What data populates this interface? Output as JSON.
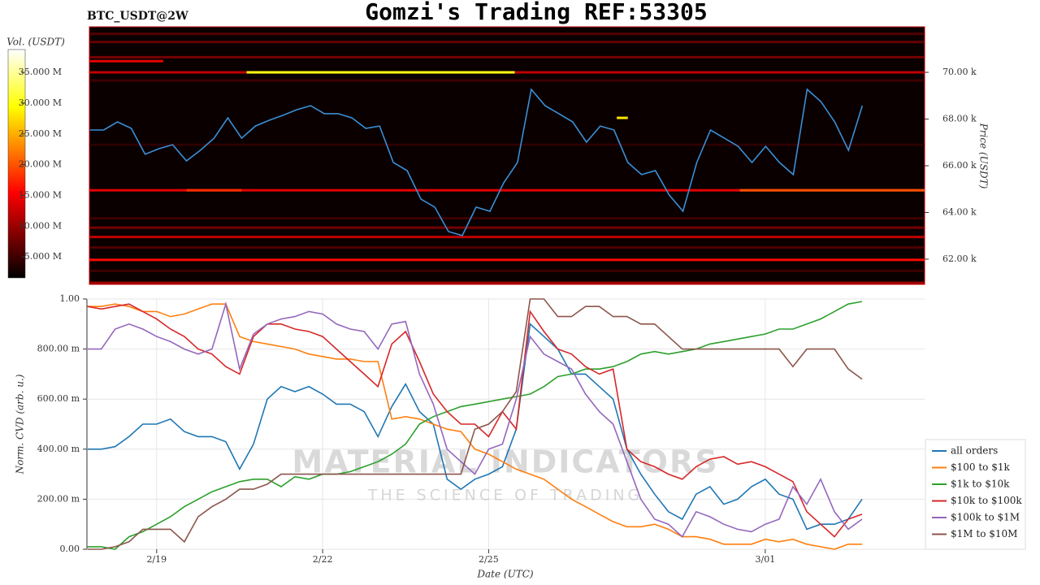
{
  "chart_data": [
    {
      "type": "heatmap",
      "symbol": "BTC_USDT@2W",
      "title": "Gomzi's Trading REF:53305",
      "colorbar_label": "Vol. (USDT)",
      "colorbar_lim": [
        1600000,
        38700000
      ],
      "colorbar_ticks": [
        {
          "value": 5000000,
          "label": "5.000 M"
        },
        {
          "value": 10000000,
          "label": "10.000 M"
        },
        {
          "value": 15000000,
          "label": "15.000 M"
        },
        {
          "value": 20000000,
          "label": "20.000 M"
        },
        {
          "value": 25000000,
          "label": "25.000 M"
        },
        {
          "value": 30000000,
          "label": "30.000 M"
        },
        {
          "value": 35000000,
          "label": "35.000 M"
        }
      ],
      "y_label": "Price (USDT)",
      "ylim": [
        60920,
        71950
      ],
      "yticks": [
        {
          "value": 62000,
          "label": "62.00 k"
        },
        {
          "value": 64000,
          "label": "64.00 k"
        },
        {
          "value": 66000,
          "label": "66.00 k"
        },
        {
          "value": 68000,
          "label": "68.00 k"
        },
        {
          "value": 70000,
          "label": "70.00 k"
        }
      ],
      "xlim": [
        17.74,
        32.88
      ],
      "x": [
        17.75,
        18,
        18.25,
        18.5,
        18.75,
        19,
        19.25,
        19.5,
        19.75,
        20,
        20.25,
        20.5,
        20.75,
        21,
        21.25,
        21.5,
        21.75,
        22,
        22.25,
        22.5,
        22.75,
        23,
        23.25,
        23.5,
        23.75,
        24,
        24.25,
        24.5,
        24.75,
        25,
        25.25,
        25.5,
        25.75,
        26,
        26.25,
        26.5,
        26.75,
        27,
        27.25,
        27.5,
        27.75,
        28,
        28.25,
        28.5,
        28.75,
        29,
        29.25,
        29.5,
        29.75,
        30,
        30.25,
        30.5,
        30.75,
        31,
        31.25,
        31.5,
        31.75
      ],
      "color": "#3a8fd6",
      "values": [
        67530,
        67530,
        67880,
        67600,
        66490,
        66730,
        66900,
        66210,
        66660,
        67180,
        68050,
        67180,
        67700,
        67950,
        68160,
        68400,
        68570,
        68230,
        68230,
        68050,
        67600,
        67700,
        66140,
        65790,
        64570,
        64230,
        63180,
        63010,
        64230,
        64050,
        65270,
        66140,
        69270,
        68570,
        68230,
        67880,
        67010,
        67700,
        67530,
        66140,
        65620,
        65790,
        64750,
        64050,
        66140,
        67530,
        67180,
        66830,
        66140,
        66830,
        66140,
        65620,
        69270,
        68750,
        67880,
        66660,
        68570
      ],
      "walls": {
        "price": [
          70000,
          70000,
          64950,
          64950,
          64950,
          61970,
          62950,
          70650,
          71300,
          60990,
          63350,
          68050,
          69650,
          71650,
          63750,
          62500,
          61500,
          66900,
          70480
        ],
        "start": [
          17.74,
          20.59,
          17.74,
          29.53,
          19.5,
          17.74,
          17.74,
          17.74,
          17.74,
          17.74,
          17.74,
          27.3,
          17.74,
          17.74,
          17.74,
          17.74,
          17.74,
          17.74,
          17.74
        ],
        "end": [
          32.88,
          25.45,
          32.88,
          32.88,
          20.5,
          32.88,
          32.88,
          32.88,
          32.88,
          32.88,
          32.88,
          27.5,
          32.88,
          32.88,
          32.88,
          32.88,
          32.88,
          32.88,
          19.08
        ],
        "volume": [
          12000000,
          30000000,
          14000000,
          20000000,
          18000000,
          16000000,
          12000000,
          8000000,
          7000000,
          10000000,
          8000000,
          28000000,
          5000000,
          6000000,
          5000000,
          6000000,
          5000000,
          4000000,
          14000000
        ]
      }
    },
    {
      "type": "line",
      "y_label": "Norm. CVD (arb. u.)",
      "x_label": "Date (UTC)",
      "watermark": [
        "MATERIAL INDICATORS",
        "THE SCIENCE OF TRADING"
      ],
      "xlim": [
        17.74,
        32.88
      ],
      "xticks": [
        {
          "value": 19,
          "label": "2/19"
        },
        {
          "value": 22,
          "label": "2/22"
        },
        {
          "value": 25,
          "label": "2/25"
        },
        {
          "value": 30,
          "label": "3/01"
        }
      ],
      "ylim": [
        0,
        1
      ],
      "yticks": [
        {
          "value": 0,
          "label": "0.00"
        },
        {
          "value": 0.2,
          "label": "200.00 m"
        },
        {
          "value": 0.4,
          "label": "400.00 m"
        },
        {
          "value": 0.6,
          "label": "600.00 m"
        },
        {
          "value": 0.8,
          "label": "800.00 m"
        },
        {
          "value": 1,
          "label": "1.00"
        }
      ],
      "grid": true,
      "legend": "lower right",
      "x": [
        17.75,
        18,
        18.25,
        18.5,
        18.75,
        19,
        19.25,
        19.5,
        19.75,
        20,
        20.25,
        20.5,
        20.75,
        21,
        21.25,
        21.5,
        21.75,
        22,
        22.25,
        22.5,
        22.75,
        23,
        23.25,
        23.5,
        23.75,
        24,
        24.25,
        24.5,
        24.75,
        25,
        25.25,
        25.5,
        25.75,
        26,
        26.25,
        26.5,
        26.75,
        27,
        27.25,
        27.5,
        27.75,
        28,
        28.25,
        28.5,
        28.75,
        29,
        29.25,
        29.5,
        29.75,
        30,
        30.25,
        30.5,
        30.75,
        31,
        31.25,
        31.5,
        31.75
      ],
      "series": [
        {
          "name": "all orders",
          "color": "#1f77b4",
          "values": [
            0.4,
            0.4,
            0.41,
            0.45,
            0.5,
            0.5,
            0.52,
            0.47,
            0.45,
            0.45,
            0.43,
            0.32,
            0.42,
            0.6,
            0.65,
            0.63,
            0.65,
            0.62,
            0.58,
            0.58,
            0.55,
            0.45,
            0.57,
            0.66,
            0.55,
            0.5,
            0.28,
            0.24,
            0.28,
            0.3,
            0.33,
            0.48,
            0.9,
            0.85,
            0.8,
            0.7,
            0.7,
            0.65,
            0.6,
            0.4,
            0.3,
            0.22,
            0.15,
            0.12,
            0.22,
            0.25,
            0.18,
            0.2,
            0.25,
            0.28,
            0.22,
            0.2,
            0.08,
            0.1,
            0.1,
            0.12,
            0.2
          ]
        },
        {
          "name": "$100 to $1k",
          "color": "#ff7f0e",
          "values": [
            0.97,
            0.97,
            0.98,
            0.97,
            0.95,
            0.95,
            0.93,
            0.94,
            0.96,
            0.98,
            0.98,
            0.85,
            0.83,
            0.82,
            0.81,
            0.8,
            0.78,
            0.77,
            0.76,
            0.76,
            0.75,
            0.75,
            0.52,
            0.53,
            0.52,
            0.5,
            0.48,
            0.47,
            0.4,
            0.38,
            0.35,
            0.32,
            0.3,
            0.28,
            0.24,
            0.2,
            0.17,
            0.14,
            0.11,
            0.09,
            0.09,
            0.1,
            0.08,
            0.05,
            0.05,
            0.04,
            0.02,
            0.02,
            0.02,
            0.04,
            0.03,
            0.04,
            0.02,
            0.01,
            0.0,
            0.02,
            0.02
          ]
        },
        {
          "name": "$1k to $10k",
          "color": "#2ca02c",
          "values": [
            0.01,
            0.01,
            0.0,
            0.05,
            0.07,
            0.1,
            0.13,
            0.17,
            0.2,
            0.23,
            0.25,
            0.27,
            0.28,
            0.28,
            0.25,
            0.29,
            0.28,
            0.3,
            0.3,
            0.31,
            0.33,
            0.35,
            0.38,
            0.42,
            0.5,
            0.53,
            0.55,
            0.57,
            0.58,
            0.59,
            0.6,
            0.61,
            0.62,
            0.65,
            0.69,
            0.7,
            0.72,
            0.72,
            0.73,
            0.75,
            0.78,
            0.79,
            0.78,
            0.79,
            0.8,
            0.82,
            0.83,
            0.84,
            0.85,
            0.86,
            0.88,
            0.88,
            0.9,
            0.92,
            0.95,
            0.98,
            0.99
          ]
        },
        {
          "name": "$10k to $100k",
          "color": "#d62728",
          "values": [
            0.97,
            0.96,
            0.97,
            0.98,
            0.95,
            0.92,
            0.88,
            0.85,
            0.8,
            0.78,
            0.73,
            0.7,
            0.85,
            0.9,
            0.9,
            0.88,
            0.87,
            0.85,
            0.8,
            0.75,
            0.7,
            0.65,
            0.82,
            0.87,
            0.75,
            0.62,
            0.55,
            0.5,
            0.5,
            0.45,
            0.55,
            0.48,
            0.95,
            0.87,
            0.8,
            0.78,
            0.73,
            0.7,
            0.72,
            0.4,
            0.35,
            0.33,
            0.3,
            0.28,
            0.33,
            0.36,
            0.37,
            0.34,
            0.35,
            0.33,
            0.3,
            0.27,
            0.15,
            0.1,
            0.05,
            0.12,
            0.14
          ]
        },
        {
          "name": "$100k to $1M",
          "color": "#9467bd",
          "values": [
            0.8,
            0.8,
            0.88,
            0.9,
            0.88,
            0.85,
            0.83,
            0.8,
            0.78,
            0.8,
            0.98,
            0.72,
            0.86,
            0.9,
            0.92,
            0.93,
            0.95,
            0.94,
            0.9,
            0.88,
            0.87,
            0.8,
            0.9,
            0.91,
            0.7,
            0.58,
            0.4,
            0.35,
            0.3,
            0.4,
            0.42,
            0.6,
            0.85,
            0.78,
            0.75,
            0.72,
            0.62,
            0.55,
            0.5,
            0.35,
            0.2,
            0.12,
            0.1,
            0.05,
            0.15,
            0.13,
            0.1,
            0.08,
            0.07,
            0.1,
            0.12,
            0.25,
            0.18,
            0.28,
            0.15,
            0.08,
            0.12
          ]
        },
        {
          "name": "$1M to $10M",
          "color": "#8c564b",
          "values": [
            0.0,
            0.0,
            0.01,
            0.03,
            0.08,
            0.08,
            0.08,
            0.03,
            0.13,
            0.17,
            0.2,
            0.24,
            0.24,
            0.26,
            0.3,
            0.3,
            0.3,
            0.3,
            0.3,
            0.3,
            0.3,
            0.3,
            0.3,
            0.3,
            0.3,
            0.3,
            0.3,
            0.3,
            0.48,
            0.5,
            0.55,
            0.63,
            1.0,
            1.0,
            0.93,
            0.93,
            0.97,
            0.97,
            0.93,
            0.93,
            0.9,
            0.9,
            0.85,
            0.8,
            0.8,
            0.8,
            0.8,
            0.8,
            0.8,
            0.8,
            0.8,
            0.73,
            0.8,
            0.8,
            0.8,
            0.72,
            0.68
          ]
        }
      ]
    }
  ]
}
